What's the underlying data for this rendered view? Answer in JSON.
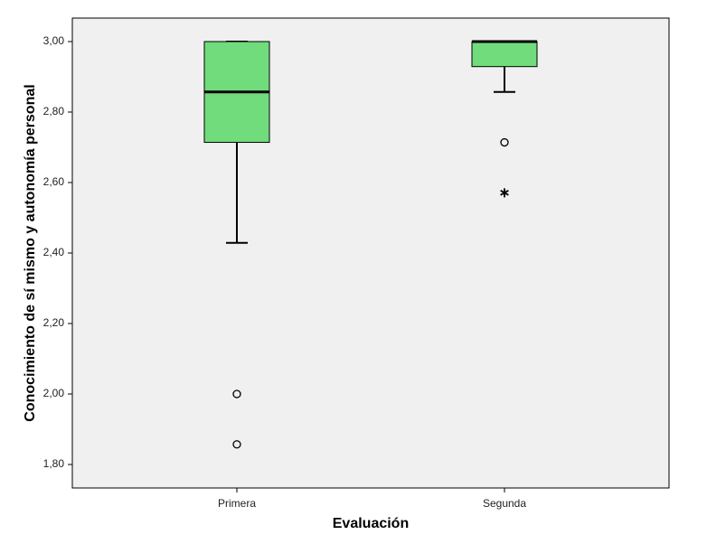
{
  "chart_data": {
    "type": "box",
    "x_label": "Evaluación",
    "y_label": "Conocimiento de sí mismo y autonomía personal",
    "categories": [
      "Primera",
      "Segunda"
    ],
    "boxes": [
      {
        "low": 2.429,
        "q1": 2.714,
        "median": 2.857,
        "q3": 3.0,
        "high": 3.0,
        "outliers": [
          2.0,
          1.857
        ],
        "extremes": []
      },
      {
        "low": 2.857,
        "q1": 2.929,
        "median": 3.0,
        "q3": 3.0,
        "high": 3.0,
        "outliers": [
          2.714
        ],
        "extremes": [
          2.571
        ]
      }
    ],
    "color": "#70dc7c",
    "background": "#f0f0f0",
    "ylim": [
      1.7333,
      3.0667
    ],
    "yticks": [
      {
        "value": 1.8,
        "label": "1,80"
      },
      {
        "value": 2.0,
        "label": "2,00"
      },
      {
        "value": 2.2,
        "label": "2,20"
      },
      {
        "value": 2.4,
        "label": "2,40"
      },
      {
        "value": 2.6,
        "label": "2,60"
      },
      {
        "value": 2.8,
        "label": "2,80"
      },
      {
        "value": 3.0,
        "label": "3,00"
      }
    ]
  }
}
